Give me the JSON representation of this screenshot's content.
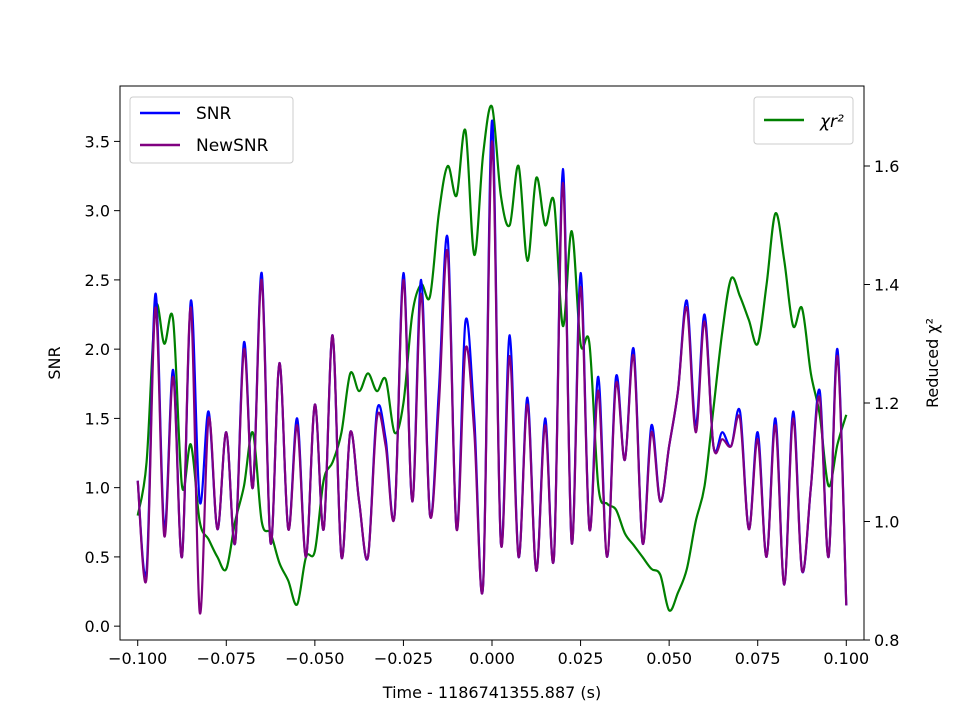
{
  "chart_data": {
    "type": "line",
    "title": "",
    "xlabel": "Time - 1186741355.887 (s)",
    "ylabel": "SNR",
    "y2label": "Reduced χ²",
    "xlim": [
      -0.105,
      0.105
    ],
    "ylim": [
      -0.1,
      3.9
    ],
    "y2lim": [
      0.8,
      1.735
    ],
    "xticks": [
      -0.1,
      -0.075,
      -0.05,
      -0.025,
      0.0,
      0.025,
      0.05,
      0.075,
      0.1
    ],
    "xtick_labels": [
      "−0.100",
      "−0.075",
      "−0.050",
      "−0.025",
      "0.000",
      "0.025",
      "0.050",
      "0.075",
      "0.100"
    ],
    "yticks": [
      0.0,
      0.5,
      1.0,
      1.5,
      2.0,
      2.5,
      3.0,
      3.5
    ],
    "ytick_labels": [
      "0.0",
      "0.5",
      "1.0",
      "1.5",
      "2.0",
      "2.5",
      "3.0",
      "3.5"
    ],
    "y2ticks": [
      0.8,
      1.0,
      1.2,
      1.4,
      1.6
    ],
    "y2tick_labels": [
      "0.8",
      "1.0",
      "1.2",
      "1.4",
      "1.6"
    ],
    "grid": false,
    "legend_left": {
      "placement": "upper-left",
      "entries": [
        "SNR",
        "NewSNR"
      ]
    },
    "legend_right": {
      "placement": "upper-right",
      "entries": [
        "χr²"
      ]
    },
    "series": [
      {
        "name": "SNR",
        "axis": "left",
        "color": "#0000ff",
        "x": [
          -0.1,
          -0.0975,
          -0.095,
          -0.0925,
          -0.09,
          -0.0875,
          -0.085,
          -0.0825,
          -0.08,
          -0.0775,
          -0.075,
          -0.0725,
          -0.07,
          -0.0675,
          -0.065,
          -0.0625,
          -0.06,
          -0.0575,
          -0.055,
          -0.0525,
          -0.05,
          -0.0475,
          -0.045,
          -0.0425,
          -0.04,
          -0.0375,
          -0.035,
          -0.0325,
          -0.03,
          -0.0275,
          -0.025,
          -0.0225,
          -0.02,
          -0.0175,
          -0.015,
          -0.0125,
          -0.01,
          -0.0075,
          -0.005,
          -0.0025,
          0.0,
          0.0025,
          0.005,
          0.0075,
          0.01,
          0.0125,
          0.015,
          0.0175,
          0.02,
          0.0225,
          0.025,
          0.0275,
          0.03,
          0.0325,
          0.035,
          0.0375,
          0.04,
          0.0425,
          0.045,
          0.0475,
          0.05,
          0.0525,
          0.055,
          0.0575,
          0.06,
          0.0625,
          0.065,
          0.0675,
          0.07,
          0.0725,
          0.075,
          0.0775,
          0.08,
          0.0825,
          0.085,
          0.0875,
          0.09,
          0.0925,
          0.095,
          0.0975,
          0.1
        ],
        "values": [
          1.05,
          0.4,
          2.4,
          0.7,
          1.85,
          0.5,
          2.35,
          0.9,
          1.55,
          0.7,
          1.4,
          0.6,
          2.05,
          1.0,
          2.55,
          0.6,
          1.9,
          0.7,
          1.5,
          0.5,
          1.6,
          0.7,
          2.1,
          0.5,
          1.4,
          0.9,
          0.5,
          1.55,
          1.35,
          0.8,
          2.55,
          0.9,
          2.5,
          0.8,
          1.7,
          2.8,
          0.7,
          2.2,
          1.5,
          0.3,
          3.65,
          0.6,
          2.1,
          0.5,
          1.65,
          0.4,
          1.5,
          0.5,
          3.3,
          0.6,
          2.55,
          0.7,
          1.8,
          0.5,
          1.8,
          1.2,
          2.0,
          0.6,
          1.45,
          0.9,
          1.3,
          1.7,
          2.35,
          1.45,
          2.25,
          1.3,
          1.4,
          1.3,
          1.55,
          0.7,
          1.4,
          0.5,
          1.5,
          0.3,
          1.55,
          0.4,
          1.0,
          1.7,
          0.5,
          2.0,
          0.15
        ]
      },
      {
        "name": "NewSNR",
        "axis": "left",
        "color": "#800080",
        "x": [
          -0.1,
          -0.0975,
          -0.095,
          -0.0925,
          -0.09,
          -0.0875,
          -0.085,
          -0.0825,
          -0.08,
          -0.0775,
          -0.075,
          -0.0725,
          -0.07,
          -0.0675,
          -0.065,
          -0.0625,
          -0.06,
          -0.0575,
          -0.055,
          -0.0525,
          -0.05,
          -0.0475,
          -0.045,
          -0.0425,
          -0.04,
          -0.0375,
          -0.035,
          -0.0325,
          -0.03,
          -0.0275,
          -0.025,
          -0.0225,
          -0.02,
          -0.0175,
          -0.015,
          -0.0125,
          -0.01,
          -0.0075,
          -0.005,
          -0.0025,
          0.0,
          0.0025,
          0.005,
          0.0075,
          0.01,
          0.0125,
          0.015,
          0.0175,
          0.02,
          0.0225,
          0.025,
          0.0275,
          0.03,
          0.0325,
          0.035,
          0.0375,
          0.04,
          0.0425,
          0.045,
          0.0475,
          0.05,
          0.0525,
          0.055,
          0.0575,
          0.06,
          0.0625,
          0.065,
          0.0675,
          0.07,
          0.0725,
          0.075,
          0.0775,
          0.08,
          0.0825,
          0.085,
          0.0875,
          0.09,
          0.0925,
          0.095,
          0.0975,
          0.1
        ],
        "values": [
          1.05,
          0.35,
          2.3,
          0.65,
          1.8,
          0.5,
          2.3,
          0.1,
          1.5,
          0.7,
          1.4,
          0.6,
          2.0,
          1.0,
          2.5,
          0.6,
          1.9,
          0.7,
          1.45,
          0.5,
          1.6,
          0.7,
          2.1,
          0.5,
          1.4,
          0.9,
          0.5,
          1.5,
          1.3,
          0.8,
          2.5,
          0.9,
          2.4,
          0.8,
          1.6,
          2.7,
          0.7,
          2.0,
          1.4,
          0.3,
          3.5,
          0.6,
          1.95,
          0.5,
          1.6,
          0.4,
          1.45,
          0.5,
          3.2,
          0.6,
          2.45,
          0.7,
          1.7,
          0.5,
          1.75,
          1.2,
          1.95,
          0.6,
          1.4,
          0.9,
          1.3,
          1.7,
          2.3,
          1.4,
          2.2,
          1.3,
          1.35,
          1.3,
          1.5,
          0.7,
          1.35,
          0.5,
          1.45,
          0.3,
          1.5,
          0.4,
          1.0,
          1.65,
          0.5,
          1.95,
          0.15
        ]
      },
      {
        "name": "χr²",
        "axis": "right",
        "color": "#008000",
        "x": [
          -0.1,
          -0.0975,
          -0.095,
          -0.0925,
          -0.09,
          -0.0875,
          -0.085,
          -0.0825,
          -0.08,
          -0.0775,
          -0.075,
          -0.0725,
          -0.07,
          -0.0675,
          -0.065,
          -0.0625,
          -0.06,
          -0.0575,
          -0.055,
          -0.0525,
          -0.05,
          -0.0475,
          -0.045,
          -0.0425,
          -0.04,
          -0.0375,
          -0.035,
          -0.0325,
          -0.03,
          -0.0275,
          -0.025,
          -0.0225,
          -0.02,
          -0.0175,
          -0.015,
          -0.0125,
          -0.01,
          -0.0075,
          -0.005,
          -0.0025,
          0.0,
          0.0025,
          0.005,
          0.0075,
          0.01,
          0.0125,
          0.015,
          0.0175,
          0.02,
          0.0225,
          0.025,
          0.0275,
          0.03,
          0.0325,
          0.035,
          0.0375,
          0.04,
          0.0425,
          0.045,
          0.0475,
          0.05,
          0.0525,
          0.055,
          0.0575,
          0.06,
          0.0625,
          0.065,
          0.0675,
          0.07,
          0.0725,
          0.075,
          0.0775,
          0.08,
          0.0825,
          0.085,
          0.0875,
          0.09,
          0.0925,
          0.095,
          0.0975,
          0.1
        ],
        "values": [
          1.01,
          1.1,
          1.36,
          1.3,
          1.34,
          1.06,
          1.13,
          1.0,
          0.97,
          0.94,
          0.92,
          1.0,
          1.06,
          1.15,
          1.0,
          0.98,
          0.93,
          0.9,
          0.86,
          0.94,
          0.95,
          1.07,
          1.1,
          1.15,
          1.25,
          1.22,
          1.25,
          1.22,
          1.24,
          1.15,
          1.2,
          1.35,
          1.4,
          1.38,
          1.52,
          1.6,
          1.55,
          1.66,
          1.45,
          1.62,
          1.7,
          1.55,
          1.5,
          1.6,
          1.44,
          1.58,
          1.5,
          1.54,
          1.33,
          1.49,
          1.3,
          1.3,
          1.06,
          1.03,
          1.02,
          0.98,
          0.96,
          0.94,
          0.92,
          0.91,
          0.85,
          0.88,
          0.92,
          1.0,
          1.06,
          1.19,
          1.32,
          1.41,
          1.38,
          1.34,
          1.3,
          1.4,
          1.52,
          1.44,
          1.33,
          1.36,
          1.25,
          1.18,
          1.06,
          1.13,
          1.18
        ]
      }
    ]
  }
}
